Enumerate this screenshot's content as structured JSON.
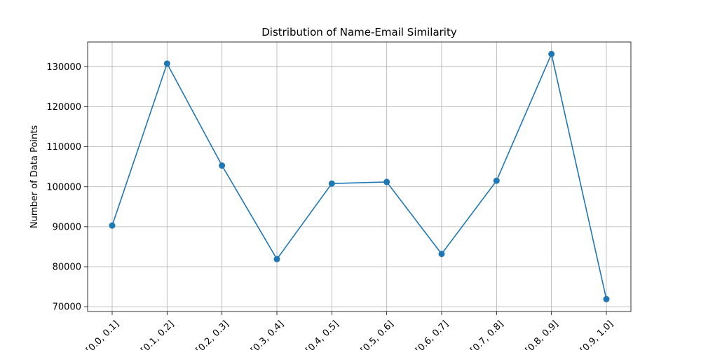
{
  "chart_data": {
    "type": "line",
    "title": "Distribution of Name-Email Similarity",
    "xlabel": "",
    "ylabel": "Number of Data Points",
    "categories": [
      "[0.0, 0.1]",
      "[0.1, 0.2]",
      "[0.2, 0.3]",
      "[0.3, 0.4]",
      "[0.4, 0.5]",
      "[0.5, 0.6]",
      "[0.6, 0.7]",
      "[0.7, 0.8]",
      "[0.8, 0.9]",
      "[0.9, 1.0]"
    ],
    "series": [
      {
        "values": [
          90300,
          130800,
          105300,
          81900,
          100800,
          101200,
          83200,
          101500,
          133200,
          71900
        ],
        "color": "#1f77b4",
        "marker": "circle"
      }
    ],
    "yticks": [
      70000,
      80000,
      90000,
      100000,
      110000,
      120000,
      130000
    ],
    "ylim": [
      68800,
      136200
    ],
    "x_tick_rotation_deg": 45,
    "grid": true,
    "legend": "none"
  }
}
